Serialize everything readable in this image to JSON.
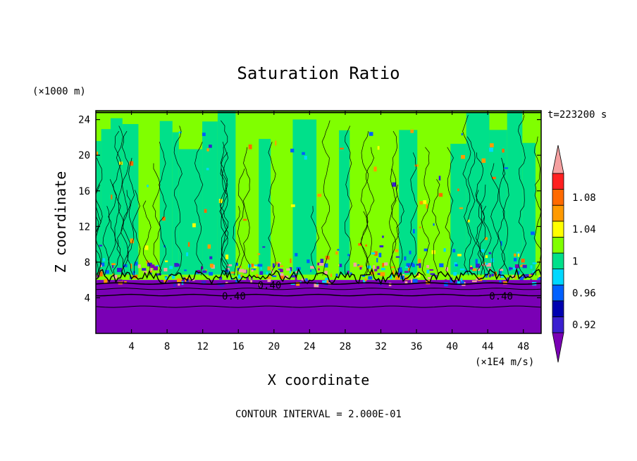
{
  "chart_data": {
    "type": "heatmap",
    "title": "Saturation Ratio",
    "xlabel": "X coordinate",
    "ylabel": "Z coordinate",
    "x_unit": "(×1E4 m/s)",
    "y_unit": "(×1000 m)",
    "time_label": "t=223200 s",
    "footer": "CONTOUR INTERVAL = 2.000E-01",
    "xlim": [
      0,
      50
    ],
    "ylim": [
      0,
      25
    ],
    "x_ticks": [
      4,
      8,
      12,
      16,
      20,
      24,
      28,
      32,
      36,
      40,
      44,
      48
    ],
    "x_tick_labels": [
      "4",
      "8",
      "12",
      "16",
      "20",
      "24",
      "28",
      "32",
      "36",
      "40",
      "44",
      "48"
    ],
    "y_ticks": [
      4,
      8,
      12,
      16,
      20,
      24
    ],
    "y_tick_labels": [
      "4",
      "8",
      "12",
      "16",
      "20",
      "24"
    ],
    "contour_labels": [
      {
        "text": "0.40",
        "x": 15.5,
        "y": 4.2
      },
      {
        "text": "0.40",
        "x": 45.5,
        "y": 4.2
      },
      {
        "text": "0.40",
        "x": 19.5,
        "y": 5.4
      }
    ],
    "colorbar": {
      "levels": [
        0.92,
        0.94,
        0.96,
        0.98,
        1.0,
        1.02,
        1.04,
        1.06,
        1.08,
        1.1
      ],
      "colors": [
        "#7a00b5",
        "#3a1fd0",
        "#0000b0",
        "#0060ff",
        "#00d8ff",
        "#00e08a",
        "#80ff00",
        "#ffff00",
        "#ff9a00",
        "#ff6a00",
        "#ff2020",
        "#f5a0a0"
      ],
      "labels": [
        "0.92",
        "0.96",
        "1",
        "1.04",
        "1.08"
      ]
    },
    "field_regions": [
      {
        "zmin": 0,
        "zmax": 6,
        "color": "#7a00b5"
      },
      {
        "zmin": 6,
        "zmax": 25,
        "colors": [
          "#80ff00",
          "#00e08a"
        ]
      }
    ]
  }
}
